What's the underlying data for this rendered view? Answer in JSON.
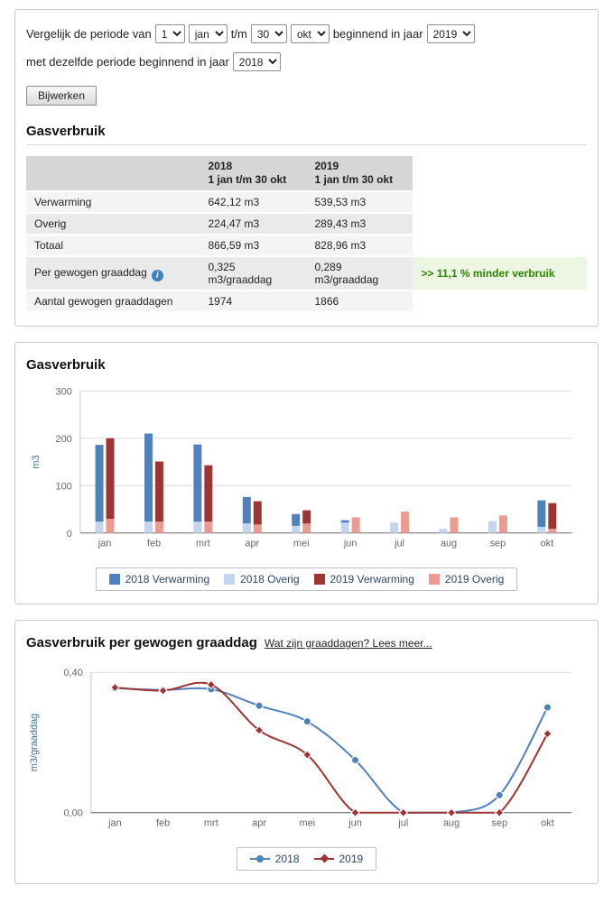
{
  "controls": {
    "line1_prefix": "Vergelijk de periode van",
    "day_from": "1",
    "month_from": "jan",
    "tm_label": "t/m",
    "day_to": "30",
    "month_to": "okt",
    "line1_suffix": "beginnend in jaar",
    "year_a": "2019",
    "line2_label": "met dezelfde periode beginnend in jaar",
    "year_b": "2018",
    "update_button": "Bijwerken"
  },
  "summary": {
    "title": "Gasverbruik",
    "table": {
      "col_headers": [
        {
          "year": "2018",
          "period": "1 jan t/m 30 okt"
        },
        {
          "year": "2019",
          "period": "1 jan t/m 30 okt"
        }
      ],
      "rows": [
        {
          "label": "Verwarming",
          "v2018": "642,12 m3",
          "v2019": "539,53 m3"
        },
        {
          "label": "Overig",
          "v2018": "224,47 m3",
          "v2019": "289,43 m3"
        },
        {
          "label": "Totaal",
          "v2018": "866,59 m3",
          "v2019": "828,96 m3"
        },
        {
          "label": "Per gewogen graaddag",
          "info_icon": "i",
          "v2018": "0,325 m3/graaddag",
          "v2019": "0,289 m3/graaddag",
          "note": ">> 11,1 % minder verbruik"
        },
        {
          "label": "Aantal gewogen graaddagen",
          "v2018": "1974",
          "v2019": "1866"
        }
      ]
    }
  },
  "bar_chart_title": "Gasverbruik",
  "line_chart_title": "Gasverbruik per gewogen graaddag",
  "line_chart_link": "Wat zijn graaddagen? Lees meer...",
  "chart_data": [
    {
      "type": "bar",
      "stacked": true,
      "title": "Gasverbruik",
      "categories": [
        "jan",
        "feb",
        "mrt",
        "apr",
        "mei",
        "jun",
        "jul",
        "aug",
        "sep",
        "okt"
      ],
      "series": [
        {
          "name": "2018 Verwarming",
          "stack": "2018",
          "color": "#4f81bd",
          "values": [
            162,
            186,
            163,
            56,
            25,
            5,
            0,
            0,
            0,
            56
          ]
        },
        {
          "name": "2018 Overig",
          "stack": "2018",
          "color": "#c3d6ee",
          "values": [
            24,
            24,
            24,
            20,
            15,
            22,
            22,
            9,
            25,
            13
          ]
        },
        {
          "name": "2019 Verwarming",
          "stack": "2019",
          "color": "#9e3433",
          "values": [
            170,
            127,
            119,
            49,
            28,
            0,
            0,
            0,
            0,
            54
          ]
        },
        {
          "name": "2019 Overig",
          "stack": "2019",
          "color": "#ec9b92",
          "values": [
            30,
            24,
            24,
            18,
            20,
            33,
            45,
            33,
            37,
            9
          ]
        }
      ],
      "xlabel": "",
      "ylabel": "m3",
      "ylim": [
        0,
        300
      ],
      "yticks": [
        0,
        100,
        200,
        300
      ],
      "grid": true,
      "legend_position": "bottom"
    },
    {
      "type": "line",
      "title": "Gasverbruik per gewogen graaddag",
      "categories": [
        "jan",
        "feb",
        "mrt",
        "apr",
        "mei",
        "jun",
        "jul",
        "aug",
        "sep",
        "okt"
      ],
      "series": [
        {
          "name": "2018",
          "color": "#4f81bd",
          "marker": "circle",
          "values": [
            0.355,
            0.35,
            0.352,
            0.305,
            0.26,
            0.15,
            0.0,
            0.0,
            0.05,
            0.3
          ]
        },
        {
          "name": "2019",
          "color": "#9e3433",
          "marker": "diamond",
          "values": [
            0.357,
            0.348,
            0.365,
            0.235,
            0.165,
            0.0,
            0.0,
            0.0,
            0.0,
            0.225
          ]
        }
      ],
      "xlabel": "",
      "ylabel": "m3/graaddag",
      "ylim": [
        0,
        0.4
      ],
      "yticks": [
        0,
        0.4
      ],
      "ytick_labels": [
        "0,00",
        "0,40"
      ],
      "grid": true,
      "legend_position": "bottom"
    }
  ]
}
